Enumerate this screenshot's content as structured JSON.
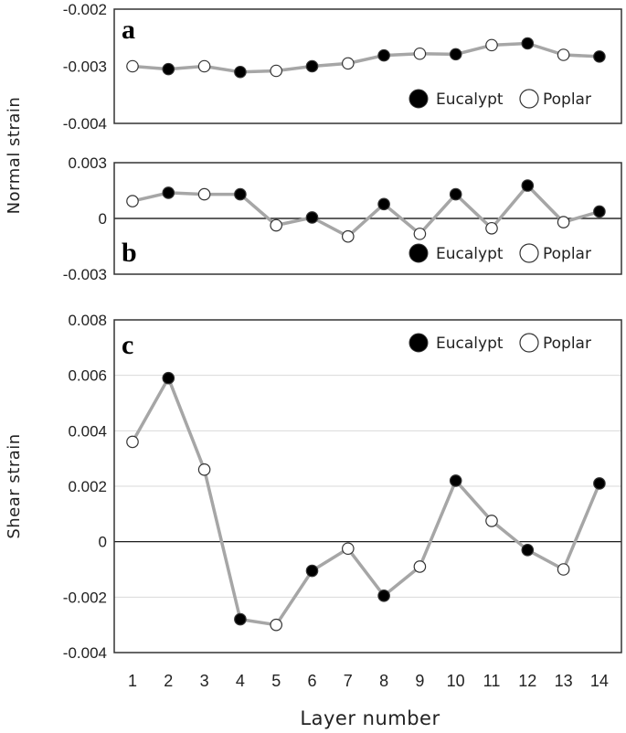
{
  "labels": {
    "normal_ylabel": "Normal strain",
    "shear_ylabel": "Shear strain",
    "xlabel": "Layer number"
  },
  "legend": {
    "eucalypt": "Eucalypt",
    "poplar": "Poplar"
  },
  "colors": {
    "eucalypt_fill": "#000000",
    "poplar_fill": "#ffffff",
    "marker_stroke": "#333333",
    "line": "#a6a6a6"
  },
  "chart_data": [
    {
      "type": "line",
      "panel": "a",
      "x": [
        1,
        2,
        3,
        4,
        5,
        6,
        7,
        8,
        9,
        10,
        11,
        12,
        13,
        14
      ],
      "y": [
        -0.003,
        -0.00305,
        -0.003,
        -0.0031,
        -0.00308,
        -0.003,
        -0.00295,
        -0.00281,
        -0.00278,
        -0.00279,
        -0.00263,
        -0.0026,
        -0.0028,
        -0.00283
      ],
      "material": [
        "Poplar",
        "Eucalypt",
        "Poplar",
        "Eucalypt",
        "Poplar",
        "Eucalypt",
        "Poplar",
        "Eucalypt",
        "Poplar",
        "Eucalypt",
        "Poplar",
        "Eucalypt",
        "Poplar",
        "Eucalypt"
      ],
      "ylim": [
        -0.004,
        -0.002
      ],
      "yticks": [
        "-0.002",
        "-0.003",
        "-0.004"
      ],
      "ytick_values": [
        -0.002,
        -0.003,
        -0.004
      ],
      "grid": false,
      "legend_position": "bottom-right"
    },
    {
      "type": "line",
      "panel": "b",
      "x": [
        1,
        2,
        3,
        4,
        5,
        6,
        7,
        8,
        9,
        10,
        11,
        12,
        13,
        14
      ],
      "y": [
        0.00093,
        0.00138,
        0.0013,
        0.0013,
        -0.00037,
        5e-05,
        -0.00097,
        0.00077,
        -0.00083,
        0.0013,
        -0.00053,
        0.00177,
        -0.0002,
        0.00037
      ],
      "material": [
        "Poplar",
        "Eucalypt",
        "Poplar",
        "Eucalypt",
        "Poplar",
        "Eucalypt",
        "Poplar",
        "Eucalypt",
        "Poplar",
        "Eucalypt",
        "Poplar",
        "Eucalypt",
        "Poplar",
        "Eucalypt"
      ],
      "ylim": [
        -0.003,
        0.003
      ],
      "yticks": [
        "0.003",
        "0",
        "-0.003"
      ],
      "ytick_values": [
        0.003,
        0,
        -0.003
      ],
      "grid": false,
      "legend_position": "bottom-right"
    },
    {
      "type": "line",
      "panel": "c",
      "x": [
        1,
        2,
        3,
        4,
        5,
        6,
        7,
        8,
        9,
        10,
        11,
        12,
        13,
        14
      ],
      "y": [
        0.0036,
        0.0059,
        0.0026,
        -0.0028,
        -0.003,
        -0.00105,
        -0.00025,
        -0.00195,
        -0.0009,
        0.0022,
        0.00075,
        -0.0003,
        -0.001,
        0.0021
      ],
      "material": [
        "Poplar",
        "Eucalypt",
        "Poplar",
        "Eucalypt",
        "Poplar",
        "Eucalypt",
        "Poplar",
        "Eucalypt",
        "Poplar",
        "Eucalypt",
        "Poplar",
        "Eucalypt",
        "Poplar",
        "Eucalypt"
      ],
      "ylim": [
        -0.004,
        0.008
      ],
      "yticks": [
        "0.008",
        "0.006",
        "0.004",
        "0.002",
        "0",
        "-0.002",
        "-0.004"
      ],
      "ytick_values": [
        0.008,
        0.006,
        0.004,
        0.002,
        0,
        -0.002,
        -0.004
      ],
      "xticks": [
        "1",
        "2",
        "3",
        "4",
        "5",
        "6",
        "7",
        "8",
        "9",
        "10",
        "11",
        "12",
        "13",
        "14"
      ],
      "grid": true,
      "legend_position": "top-right"
    }
  ]
}
